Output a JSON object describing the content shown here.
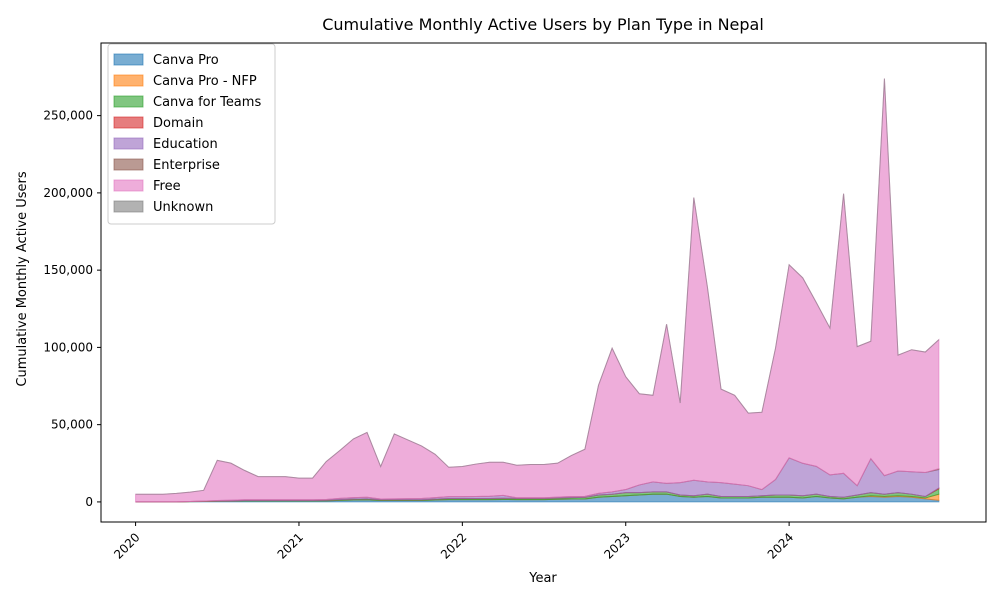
{
  "chart_data": {
    "type": "area",
    "stacked": true,
    "title": "Cumulative Monthly Active Users by Plan Type in Nepal",
    "xlabel": "Year",
    "ylabel": "Cumulative Monthly Active Users",
    "x_ticks": [
      "2020",
      "2021",
      "2022",
      "2023",
      "2024"
    ],
    "y_ticks": [
      "0",
      "50,000",
      "100,000",
      "150,000",
      "200,000",
      "250,000"
    ],
    "ylim": [
      -13000,
      297000
    ],
    "xlim": [
      "2019-10-15",
      "2025-03-15"
    ],
    "grid": false,
    "legend_position": "top-left",
    "x": [
      "2020-01",
      "2020-02",
      "2020-03",
      "2020-04",
      "2020-05",
      "2020-06",
      "2020-07",
      "2020-08",
      "2020-09",
      "2020-10",
      "2020-11",
      "2020-12",
      "2021-01",
      "2021-02",
      "2021-03",
      "2021-04",
      "2021-05",
      "2021-06",
      "2021-07",
      "2021-08",
      "2021-09",
      "2021-10",
      "2021-11",
      "2021-12",
      "2022-01",
      "2022-02",
      "2022-03",
      "2022-04",
      "2022-05",
      "2022-06",
      "2022-07",
      "2022-08",
      "2022-09",
      "2022-10",
      "2022-11",
      "2022-12",
      "2023-01",
      "2023-02",
      "2023-03",
      "2023-04",
      "2023-05",
      "2023-06",
      "2023-07",
      "2023-08",
      "2023-09",
      "2023-10",
      "2023-11",
      "2023-12",
      "2024-01",
      "2024-02",
      "2024-03",
      "2024-04",
      "2024-05",
      "2024-06",
      "2024-07",
      "2024-08",
      "2024-09",
      "2024-10",
      "2024-11",
      "2024-12"
    ],
    "series": [
      {
        "name": "Canva Pro",
        "color": "#1f77b4",
        "values": [
          0,
          0,
          0,
          0,
          200,
          300,
          400,
          500,
          600,
          600,
          600,
          600,
          600,
          600,
          700,
          1000,
          1200,
          1300,
          900,
          900,
          900,
          900,
          1200,
          1500,
          1500,
          1500,
          1500,
          1600,
          1500,
          1500,
          1500,
          1700,
          1900,
          1900,
          3000,
          3500,
          4000,
          4500,
          5000,
          5000,
          3500,
          3000,
          3500,
          2500,
          2500,
          2500,
          3000,
          3000,
          3000,
          2500,
          3500,
          2500,
          2000,
          3000,
          3500,
          3000,
          3500,
          3000,
          2000,
          1000
        ]
      },
      {
        "name": "Canva Pro - NFP",
        "color": "#ff7f0e",
        "values": [
          0,
          0,
          0,
          0,
          0,
          0,
          0,
          0,
          0,
          0,
          0,
          0,
          0,
          0,
          0,
          0,
          0,
          0,
          0,
          0,
          0,
          0,
          0,
          0,
          0,
          0,
          0,
          0,
          0,
          0,
          0,
          0,
          0,
          0,
          0,
          0,
          0,
          0,
          0,
          0,
          0,
          0,
          0,
          0,
          0,
          0,
          0,
          0,
          0,
          0,
          0,
          0,
          0,
          0,
          500,
          500,
          500,
          500,
          500,
          4000
        ]
      },
      {
        "name": "Canva for Teams",
        "color": "#2ca02c",
        "values": [
          0,
          0,
          0,
          0,
          100,
          100,
          200,
          200,
          300,
          300,
          300,
          300,
          300,
          300,
          400,
          500,
          600,
          700,
          500,
          500,
          500,
          500,
          600,
          700,
          700,
          700,
          700,
          800,
          700,
          700,
          700,
          800,
          900,
          1000,
          1500,
          1500,
          2000,
          1500,
          1500,
          1500,
          1000,
          1000,
          1500,
          1000,
          1000,
          1000,
          1000,
          1500,
          1500,
          1500,
          1500,
          1000,
          1000,
          1500,
          2000,
          1500,
          2000,
          1500,
          1000,
          3500
        ]
      },
      {
        "name": "Domain",
        "color": "#d62728",
        "values": [
          0,
          0,
          0,
          0,
          0,
          0,
          0,
          0,
          0,
          0,
          0,
          0,
          0,
          0,
          0,
          0,
          0,
          0,
          0,
          0,
          0,
          0,
          0,
          0,
          0,
          0,
          0,
          0,
          0,
          0,
          0,
          0,
          0,
          0,
          0,
          0,
          0,
          0,
          0,
          0,
          0,
          0,
          0,
          0,
          0,
          0,
          0,
          0,
          0,
          0,
          0,
          0,
          0,
          0,
          0,
          0,
          0,
          0,
          0,
          500
        ]
      },
      {
        "name": "Education",
        "color": "#9467bd",
        "values": [
          0,
          0,
          0,
          0,
          0,
          100,
          300,
          400,
          500,
          500,
          500,
          500,
          500,
          500,
          500,
          800,
          1000,
          1000,
          500,
          600,
          700,
          800,
          1000,
          1200,
          1200,
          1300,
          1500,
          1800,
          500,
          500,
          500,
          600,
          700,
          700,
          1000,
          1500,
          2000,
          5000,
          6500,
          5500,
          8000,
          10000,
          8000,
          9000,
          8000,
          7000,
          4000,
          10000,
          24000,
          21000,
          18000,
          14000,
          15500,
          6000,
          22000,
          12000,
          14000,
          14500,
          15500,
          12000
        ]
      },
      {
        "name": "Enterprise",
        "color": "#8c564b",
        "values": [
          0,
          0,
          0,
          0,
          0,
          0,
          0,
          0,
          0,
          0,
          0,
          0,
          0,
          0,
          0,
          0,
          0,
          0,
          0,
          0,
          0,
          0,
          0,
          0,
          0,
          0,
          0,
          0,
          0,
          0,
          0,
          0,
          0,
          0,
          0,
          0,
          0,
          0,
          0,
          0,
          0,
          0,
          0,
          0,
          0,
          0,
          0,
          0,
          0,
          0,
          0,
          0,
          0,
          0,
          0,
          0,
          0,
          0,
          0,
          500
        ]
      },
      {
        "name": "Free",
        "color": "#e377c2",
        "values": [
          5000,
          5000,
          5000,
          5500,
          6000,
          7000,
          26000,
          24000,
          19000,
          15000,
          15000,
          15000,
          14000,
          14000,
          24500,
          31000,
          38000,
          42000,
          21000,
          42000,
          38000,
          34000,
          28000,
          19000,
          19500,
          21000,
          22000,
          21500,
          21000,
          21500,
          21500,
          22000,
          26500,
          30500,
          70000,
          93000,
          73000,
          59000,
          56000,
          103000,
          51500,
          183000,
          126000,
          60500,
          57500,
          47000,
          50000,
          85000,
          125000,
          120000,
          106000,
          95000,
          181000,
          90000,
          76000,
          257000,
          75000,
          79000,
          78000,
          83500
        ]
      },
      {
        "name": "Unknown",
        "color": "#7f7f7f",
        "values": [
          0,
          0,
          0,
          0,
          0,
          0,
          0,
          0,
          0,
          0,
          0,
          0,
          0,
          0,
          0,
          0,
          0,
          0,
          0,
          0,
          0,
          0,
          0,
          0,
          0,
          0,
          0,
          0,
          0,
          0,
          0,
          0,
          0,
          0,
          0,
          0,
          0,
          0,
          0,
          0,
          0,
          0,
          0,
          0,
          0,
          0,
          0,
          0,
          0,
          0,
          0,
          0,
          0,
          0,
          0,
          0,
          0,
          0,
          0,
          0
        ]
      }
    ]
  }
}
